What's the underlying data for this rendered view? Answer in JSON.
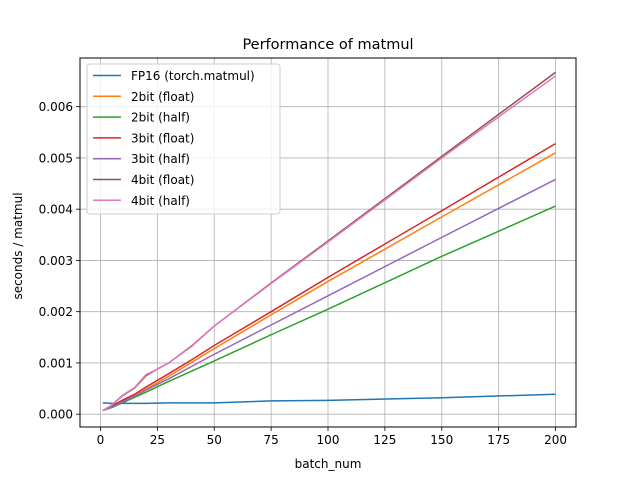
{
  "chart_data": {
    "type": "line",
    "title": "Performance of matmul",
    "xlabel": "batch_num",
    "ylabel": "seconds / matmul",
    "xlim": [
      -9,
      209
    ],
    "ylim": [
      -0.00025,
      0.00695
    ],
    "xticks": [
      0,
      25,
      50,
      75,
      100,
      125,
      150,
      175,
      200
    ],
    "yticks": [
      0.0,
      0.001,
      0.002,
      0.003,
      0.004,
      0.005,
      0.006
    ],
    "ytick_labels": [
      "0.000",
      "0.001",
      "0.002",
      "0.003",
      "0.004",
      "0.005",
      "0.006"
    ],
    "grid": true,
    "legend_position": "top-left",
    "series": [
      {
        "name": "FP16 (torch.matmul)",
        "color": "#1f77b4",
        "x": [
          1,
          5,
          10,
          15,
          20,
          30,
          40,
          50,
          75,
          100,
          150,
          200
        ],
        "y": [
          0.00022,
          0.00021,
          0.00021,
          0.00021,
          0.00021,
          0.00022,
          0.00022,
          0.00022,
          0.00026,
          0.00027,
          0.00032,
          0.00039
        ]
      },
      {
        "name": "2bit (float)",
        "color": "#ff7f0e",
        "x": [
          1,
          5,
          10,
          15,
          20,
          30,
          40,
          50,
          75,
          100,
          150,
          200
        ],
        "y": [
          7e-05,
          0.00015,
          0.00026,
          0.00036,
          0.00049,
          0.00074,
          0.00101,
          0.00128,
          0.00194,
          0.00259,
          0.00385,
          0.0051
        ]
      },
      {
        "name": "2bit (half)",
        "color": "#2ca02c",
        "x": [
          1,
          5,
          10,
          15,
          20,
          30,
          40,
          50,
          75,
          100,
          150,
          200
        ],
        "y": [
          7e-05,
          0.00013,
          0.00023,
          0.00033,
          0.00043,
          0.00064,
          0.00084,
          0.00104,
          0.00155,
          0.00205,
          0.00308,
          0.00406
        ]
      },
      {
        "name": "3bit (float)",
        "color": "#d62728",
        "x": [
          1,
          5,
          10,
          15,
          20,
          30,
          40,
          50,
          75,
          100,
          150,
          200
        ],
        "y": [
          7e-05,
          0.00016,
          0.00028,
          0.00039,
          0.00053,
          0.00079,
          0.00106,
          0.00134,
          0.002,
          0.00267,
          0.00397,
          0.00528
        ]
      },
      {
        "name": "3bit (half)",
        "color": "#9467bd",
        "x": [
          1,
          5,
          10,
          15,
          20,
          30,
          40,
          50,
          75,
          100,
          150,
          200
        ],
        "y": [
          7e-05,
          0.00014,
          0.00025,
          0.00035,
          0.00047,
          0.00069,
          0.00093,
          0.00117,
          0.00174,
          0.00231,
          0.00345,
          0.00458
        ]
      },
      {
        "name": "4bit (float)",
        "color": "#8c564b",
        "x": [
          1,
          5,
          10,
          15,
          20,
          25,
          30,
          40,
          50,
          75,
          100,
          150,
          200
        ],
        "y": [
          7e-05,
          0.00018,
          0.00037,
          0.00051,
          0.00075,
          0.00088,
          0.001,
          0.00133,
          0.00172,
          0.00256,
          0.00338,
          0.00503,
          0.00667
        ]
      },
      {
        "name": "4bit (half)",
        "color": "#e377c2",
        "x": [
          1,
          5,
          10,
          15,
          20,
          25,
          30,
          40,
          50,
          75,
          100,
          150,
          200
        ],
        "y": [
          7e-05,
          0.00018,
          0.00038,
          0.00052,
          0.00077,
          0.00088,
          0.001,
          0.00132,
          0.00172,
          0.00255,
          0.00336,
          0.005,
          0.0066
        ]
      }
    ]
  }
}
